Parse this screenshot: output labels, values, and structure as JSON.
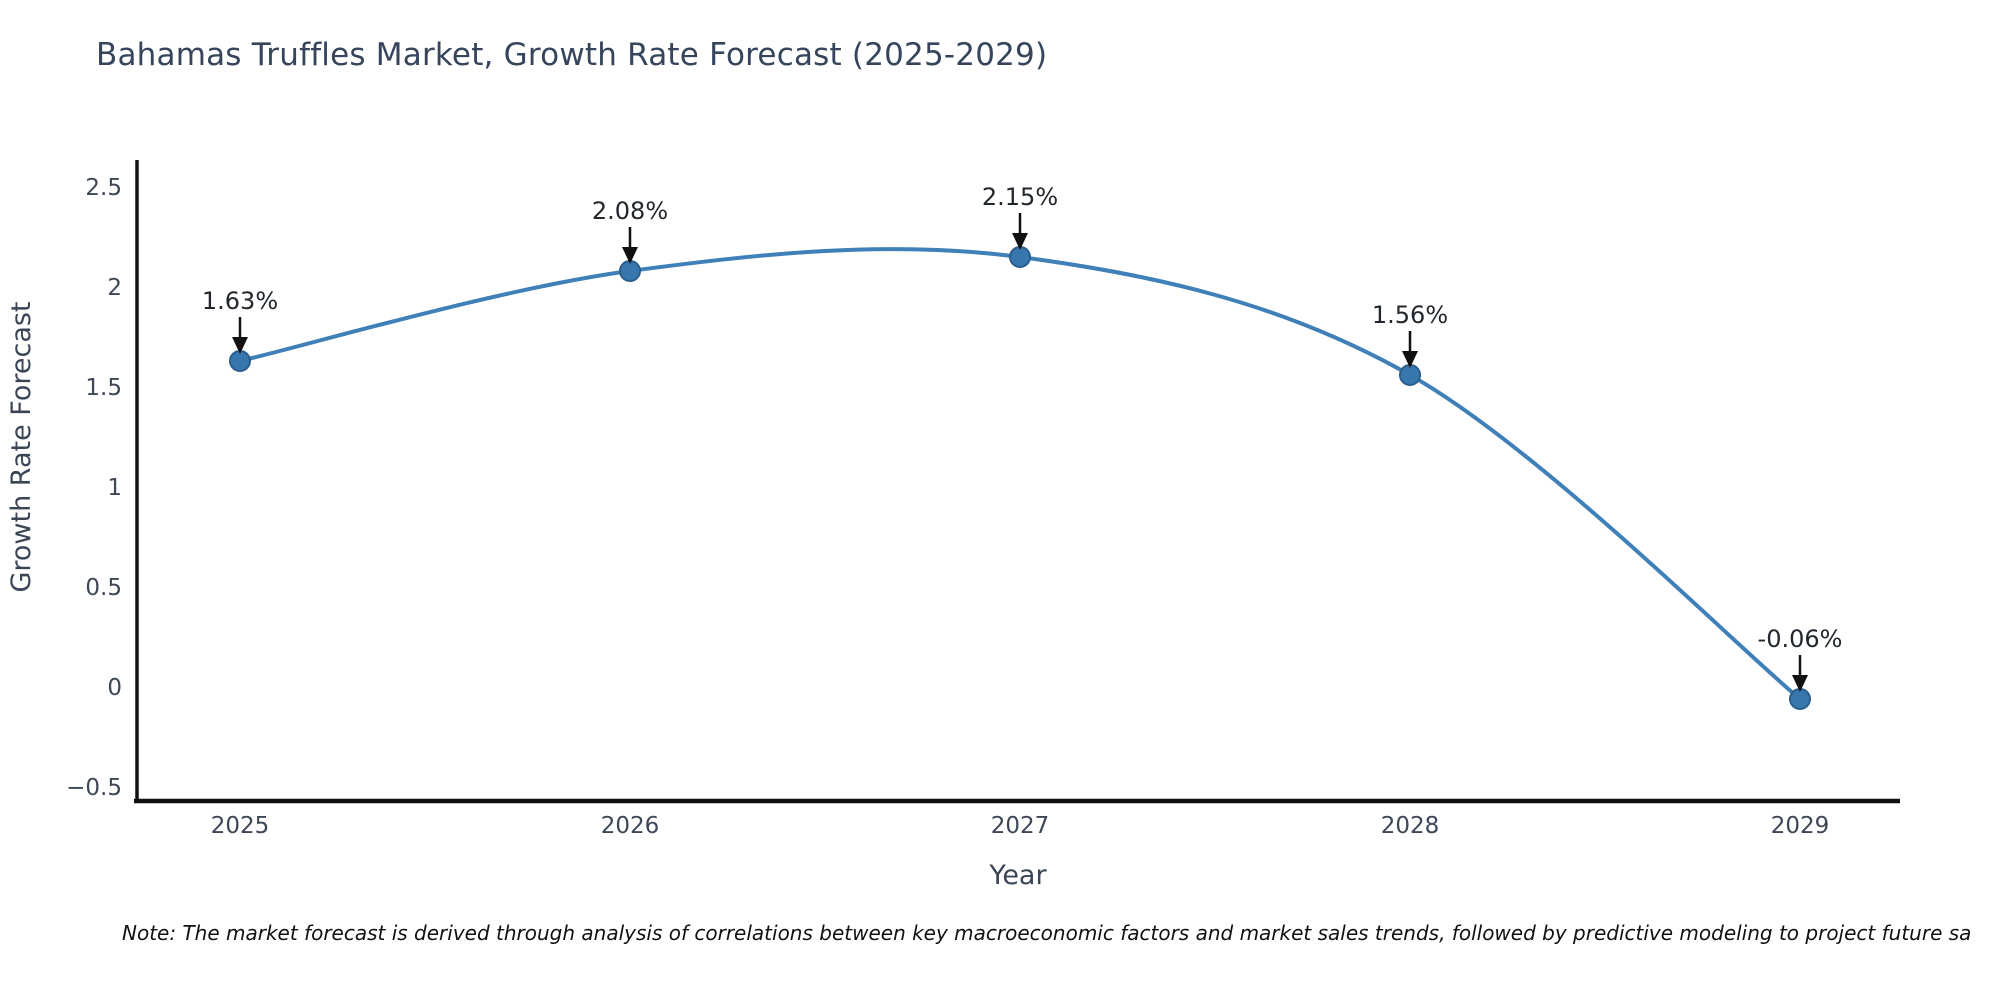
{
  "title": "Bahamas Truffles Market, Growth Rate Forecast (2025-2029)",
  "note": "Note: The market forecast is derived through analysis of correlations between key macroeconomic factors and market sales trends, followed by predictive modeling to project future sa",
  "chart_data": {
    "type": "line",
    "title": "Bahamas Truffles Market, Growth Rate Forecast (2025-2029)",
    "xlabel": "Year",
    "ylabel": "Growth Rate Forecast",
    "x": [
      2025,
      2026,
      2027,
      2028,
      2029
    ],
    "values": [
      1.63,
      2.08,
      2.15,
      1.56,
      -0.06
    ],
    "point_labels": [
      "1.63%",
      "2.08%",
      "2.15%",
      "1.56%",
      "-0.06%"
    ],
    "yticks": [
      2.5,
      2,
      1.5,
      1,
      0.5,
      0,
      -0.5
    ],
    "ytick_labels": [
      "2.5",
      "2",
      "1.5",
      "1",
      "0.5",
      "0",
      "−0.5"
    ],
    "ylim": [
      -0.575,
      2.635
    ],
    "grid": false,
    "legend": "none",
    "colors": {
      "line": "#3f80b8",
      "marker_fill": "#3877ae",
      "marker_edge": "#2a5e8c",
      "axis": "#111111",
      "tick_text": "#3d4756",
      "axis_label_text": "#3a4556",
      "title_text": "#36455c",
      "annotation_text": "#22272e",
      "arrow": "#111111"
    }
  }
}
